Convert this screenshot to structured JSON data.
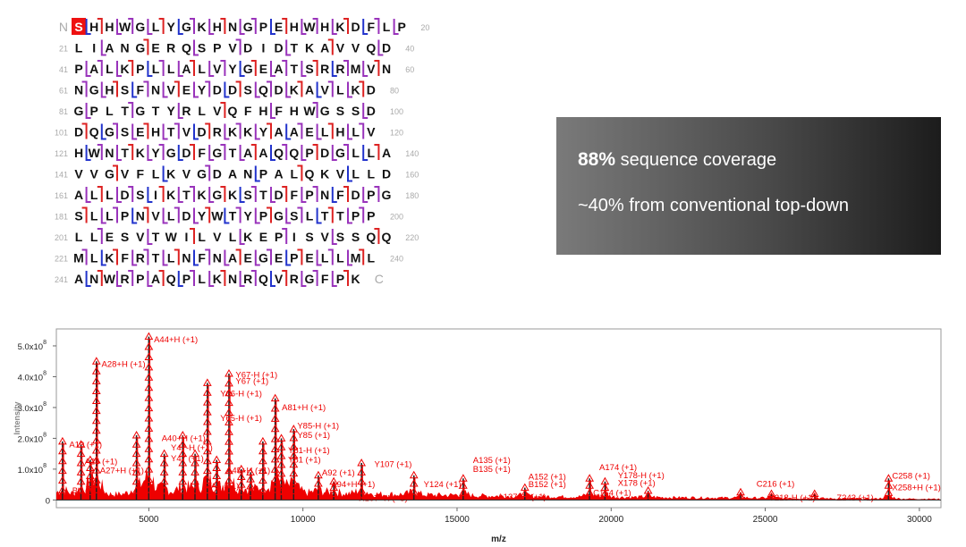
{
  "sequence_map": {
    "rows": [
      {
        "start": "",
        "end": "20",
        "seq": "SHHWGLYGKHNGPEHWHKDFLP"
      },
      {
        "start": "21",
        "end": "40",
        "seq": "LIANGERQSPVDIDTKAVVQD"
      },
      {
        "start": "41",
        "end": "60",
        "seq": "PALKPLLALVYGEATSRRMVN"
      },
      {
        "start": "61",
        "end": "80",
        "seq": "NGHSFNVEYDDSQDKAVLKD"
      },
      {
        "start": "81",
        "end": "100",
        "seq": "GPLTGTYRLVQFHFHWGSSD"
      },
      {
        "start": "101",
        "end": "120",
        "seq": "DQGSEHTVDRKKYAAELHLV"
      },
      {
        "start": "121",
        "end": "140",
        "seq": "HWNTKYGDFGTAAQQPDGLLA"
      },
      {
        "start": "141",
        "end": "160",
        "seq": "VVGVFLKVGDANPALQKVLLD"
      },
      {
        "start": "161",
        "end": "180",
        "seq": "ALLDSIKTKGKSTDFPNFDPG"
      },
      {
        "start": "181",
        "end": "200",
        "seq": "SLLPNVLDYWTYPGSLTTPP"
      },
      {
        "start": "201",
        "end": "220",
        "seq": "LLESVTWILVLKEPISVSSQQ"
      },
      {
        "start": "221",
        "end": "240",
        "seq": "MLKFRTLNFNAEGEPELLML"
      },
      {
        "start": "241",
        "end": "",
        "seq": "ANWRPAQPLKNRQVRGFPK"
      }
    ],
    "n_term": "N",
    "c_term": "C",
    "colors": {
      "highlight": "#ee1111",
      "mark_red": "#dd2222",
      "mark_blue": "#2233cc",
      "mark_purple": "#9933bb",
      "index": "#aaaaaa",
      "residue": "#111111"
    }
  },
  "callout": {
    "pct": "88%",
    "text1": " sequence coverage",
    "text2": "~40% from conventional top-down"
  },
  "chart_data": {
    "type": "line",
    "xlabel": "m/z",
    "ylabel": "Intensity",
    "xlim": [
      2000,
      30700
    ],
    "ylim": [
      -25000000,
      555000000
    ],
    "x_ticks": [
      5000,
      10000,
      15000,
      20000,
      25000,
      30000
    ],
    "y_ticks": [
      {
        "v": 0,
        "label": "0"
      },
      {
        "v": 100000000,
        "label": "1.0x10",
        "sup": "8"
      },
      {
        "v": 200000000,
        "label": "2.0x10",
        "sup": "8"
      },
      {
        "v": 300000000,
        "label": "3.0x10",
        "sup": "8"
      },
      {
        "v": 400000000,
        "label": "4.0x10",
        "sup": "8"
      },
      {
        "v": 500000000,
        "label": "5.0x10",
        "sup": "8"
      }
    ],
    "colors": {
      "spectrum": "#222222",
      "fragments": "#ee0000"
    },
    "peaks": [
      {
        "x": 2200,
        "y": 190000000
      },
      {
        "x": 2800,
        "y": 180000000
      },
      {
        "x": 3100,
        "y": 130000000
      },
      {
        "x": 3300,
        "y": 450000000
      },
      {
        "x": 4600,
        "y": 210000000
      },
      {
        "x": 5000,
        "y": 530000000
      },
      {
        "x": 5500,
        "y": 150000000
      },
      {
        "x": 6100,
        "y": 210000000
      },
      {
        "x": 6500,
        "y": 150000000
      },
      {
        "x": 6900,
        "y": 380000000
      },
      {
        "x": 7200,
        "y": 130000000
      },
      {
        "x": 7600,
        "y": 410000000
      },
      {
        "x": 8000,
        "y": 100000000
      },
      {
        "x": 8300,
        "y": 90000000
      },
      {
        "x": 8700,
        "y": 190000000
      },
      {
        "x": 9100,
        "y": 330000000
      },
      {
        "x": 9300,
        "y": 200000000
      },
      {
        "x": 9700,
        "y": 230000000
      },
      {
        "x": 10500,
        "y": 80000000
      },
      {
        "x": 11000,
        "y": 60000000
      },
      {
        "x": 11900,
        "y": 120000000
      },
      {
        "x": 13600,
        "y": 80000000
      },
      {
        "x": 15200,
        "y": 70000000
      },
      {
        "x": 17200,
        "y": 40000000
      },
      {
        "x": 19300,
        "y": 70000000
      },
      {
        "x": 19800,
        "y": 60000000
      },
      {
        "x": 21200,
        "y": 30000000
      },
      {
        "x": 24200,
        "y": 25000000
      },
      {
        "x": 25200,
        "y": 20000000
      },
      {
        "x": 26600,
        "y": 20000000
      },
      {
        "x": 29000,
        "y": 70000000
      }
    ],
    "labels": [
      {
        "text": "A44+H (+1)",
        "x": 5050,
        "y": 520000000
      },
      {
        "text": "A28+H (+1)",
        "x": 3350,
        "y": 440000000
      },
      {
        "text": "Y67-H (+1)",
        "x": 7700,
        "y": 405000000
      },
      {
        "text": "Y67 (+1)",
        "x": 7700,
        "y": 385000000
      },
      {
        "text": "Y66-H (+1)",
        "x": 7200,
        "y": 345000000
      },
      {
        "text": "A81+H (+1)",
        "x": 9200,
        "y": 300000000
      },
      {
        "text": "Y65-H (+1)",
        "x": 7200,
        "y": 265000000
      },
      {
        "text": "Y85-H (+1)",
        "x": 9700,
        "y": 240000000
      },
      {
        "text": "Y85 (+1)",
        "x": 9700,
        "y": 210000000
      },
      {
        "text": "A40+H (+1)",
        "x": 5300,
        "y": 200000000
      },
      {
        "text": "A19 (+1)",
        "x": 2300,
        "y": 180000000
      },
      {
        "text": "Y47-H (+1)",
        "x": 5600,
        "y": 170000000
      },
      {
        "text": "Y81-H (+1)",
        "x": 9400,
        "y": 160000000
      },
      {
        "text": "Y47 (+1)",
        "x": 5600,
        "y": 135000000
      },
      {
        "text": "Y81 (+1)",
        "x": 9400,
        "y": 130000000
      },
      {
        "text": "A25 (+1)",
        "x": 2800,
        "y": 125000000
      },
      {
        "text": "A27+H (+1)",
        "x": 3300,
        "y": 95000000
      },
      {
        "text": "A45+H (+1)",
        "x": 7400,
        "y": 95000000
      },
      {
        "text": "Y107 (+1)",
        "x": 12200,
        "y": 115000000
      },
      {
        "text": "A92 (+1)",
        "x": 10500,
        "y": 88000000
      },
      {
        "text": "A135 (+1)",
        "x": 15400,
        "y": 128000000
      },
      {
        "text": "B135 (+1)",
        "x": 15400,
        "y": 100000000
      },
      {
        "text": "A152 (+1)",
        "x": 17200,
        "y": 75000000
      },
      {
        "text": "B152 (+1)",
        "x": 17200,
        "y": 50000000
      },
      {
        "text": "A174 (+1)",
        "x": 19500,
        "y": 105000000
      },
      {
        "text": "Y178-H (+1)",
        "x": 20100,
        "y": 80000000
      },
      {
        "text": "X178 (+1)",
        "x": 20100,
        "y": 55000000
      },
      {
        "text": "C216 (+1)",
        "x": 24600,
        "y": 52000000
      },
      {
        "text": "C258 (+1)",
        "x": 29000,
        "y": 78000000
      },
      {
        "text": "X258+H (+1)",
        "x": 29000,
        "y": 40000000
      },
      {
        "text": "A94+H (+1)",
        "x": 10800,
        "y": 50000000
      },
      {
        "text": "Y124 (+1)",
        "x": 13800,
        "y": 50000000
      },
      {
        "text": "A137+H (+1)",
        "x": 16200,
        "y": 10000000
      },
      {
        "text": "Y218-H (+1)",
        "x": 25000,
        "y": 7000000
      },
      {
        "text": "Z243 (+1)",
        "x": 27200,
        "y": 7000000
      },
      {
        "text": "X107+H (+3)",
        "x": 11700,
        "y": 6000000
      },
      {
        "text": "C164 (+1)",
        "x": 19300,
        "y": 23000000
      },
      {
        "text": "A5 (+1)",
        "x": 6900,
        "y": 45000000
      },
      {
        "text": "B1 (+1)",
        "x": 2400,
        "y": 30000000
      },
      {
        "text": "A54 (+1)",
        "x": 8300,
        "y": 25000000
      }
    ]
  }
}
